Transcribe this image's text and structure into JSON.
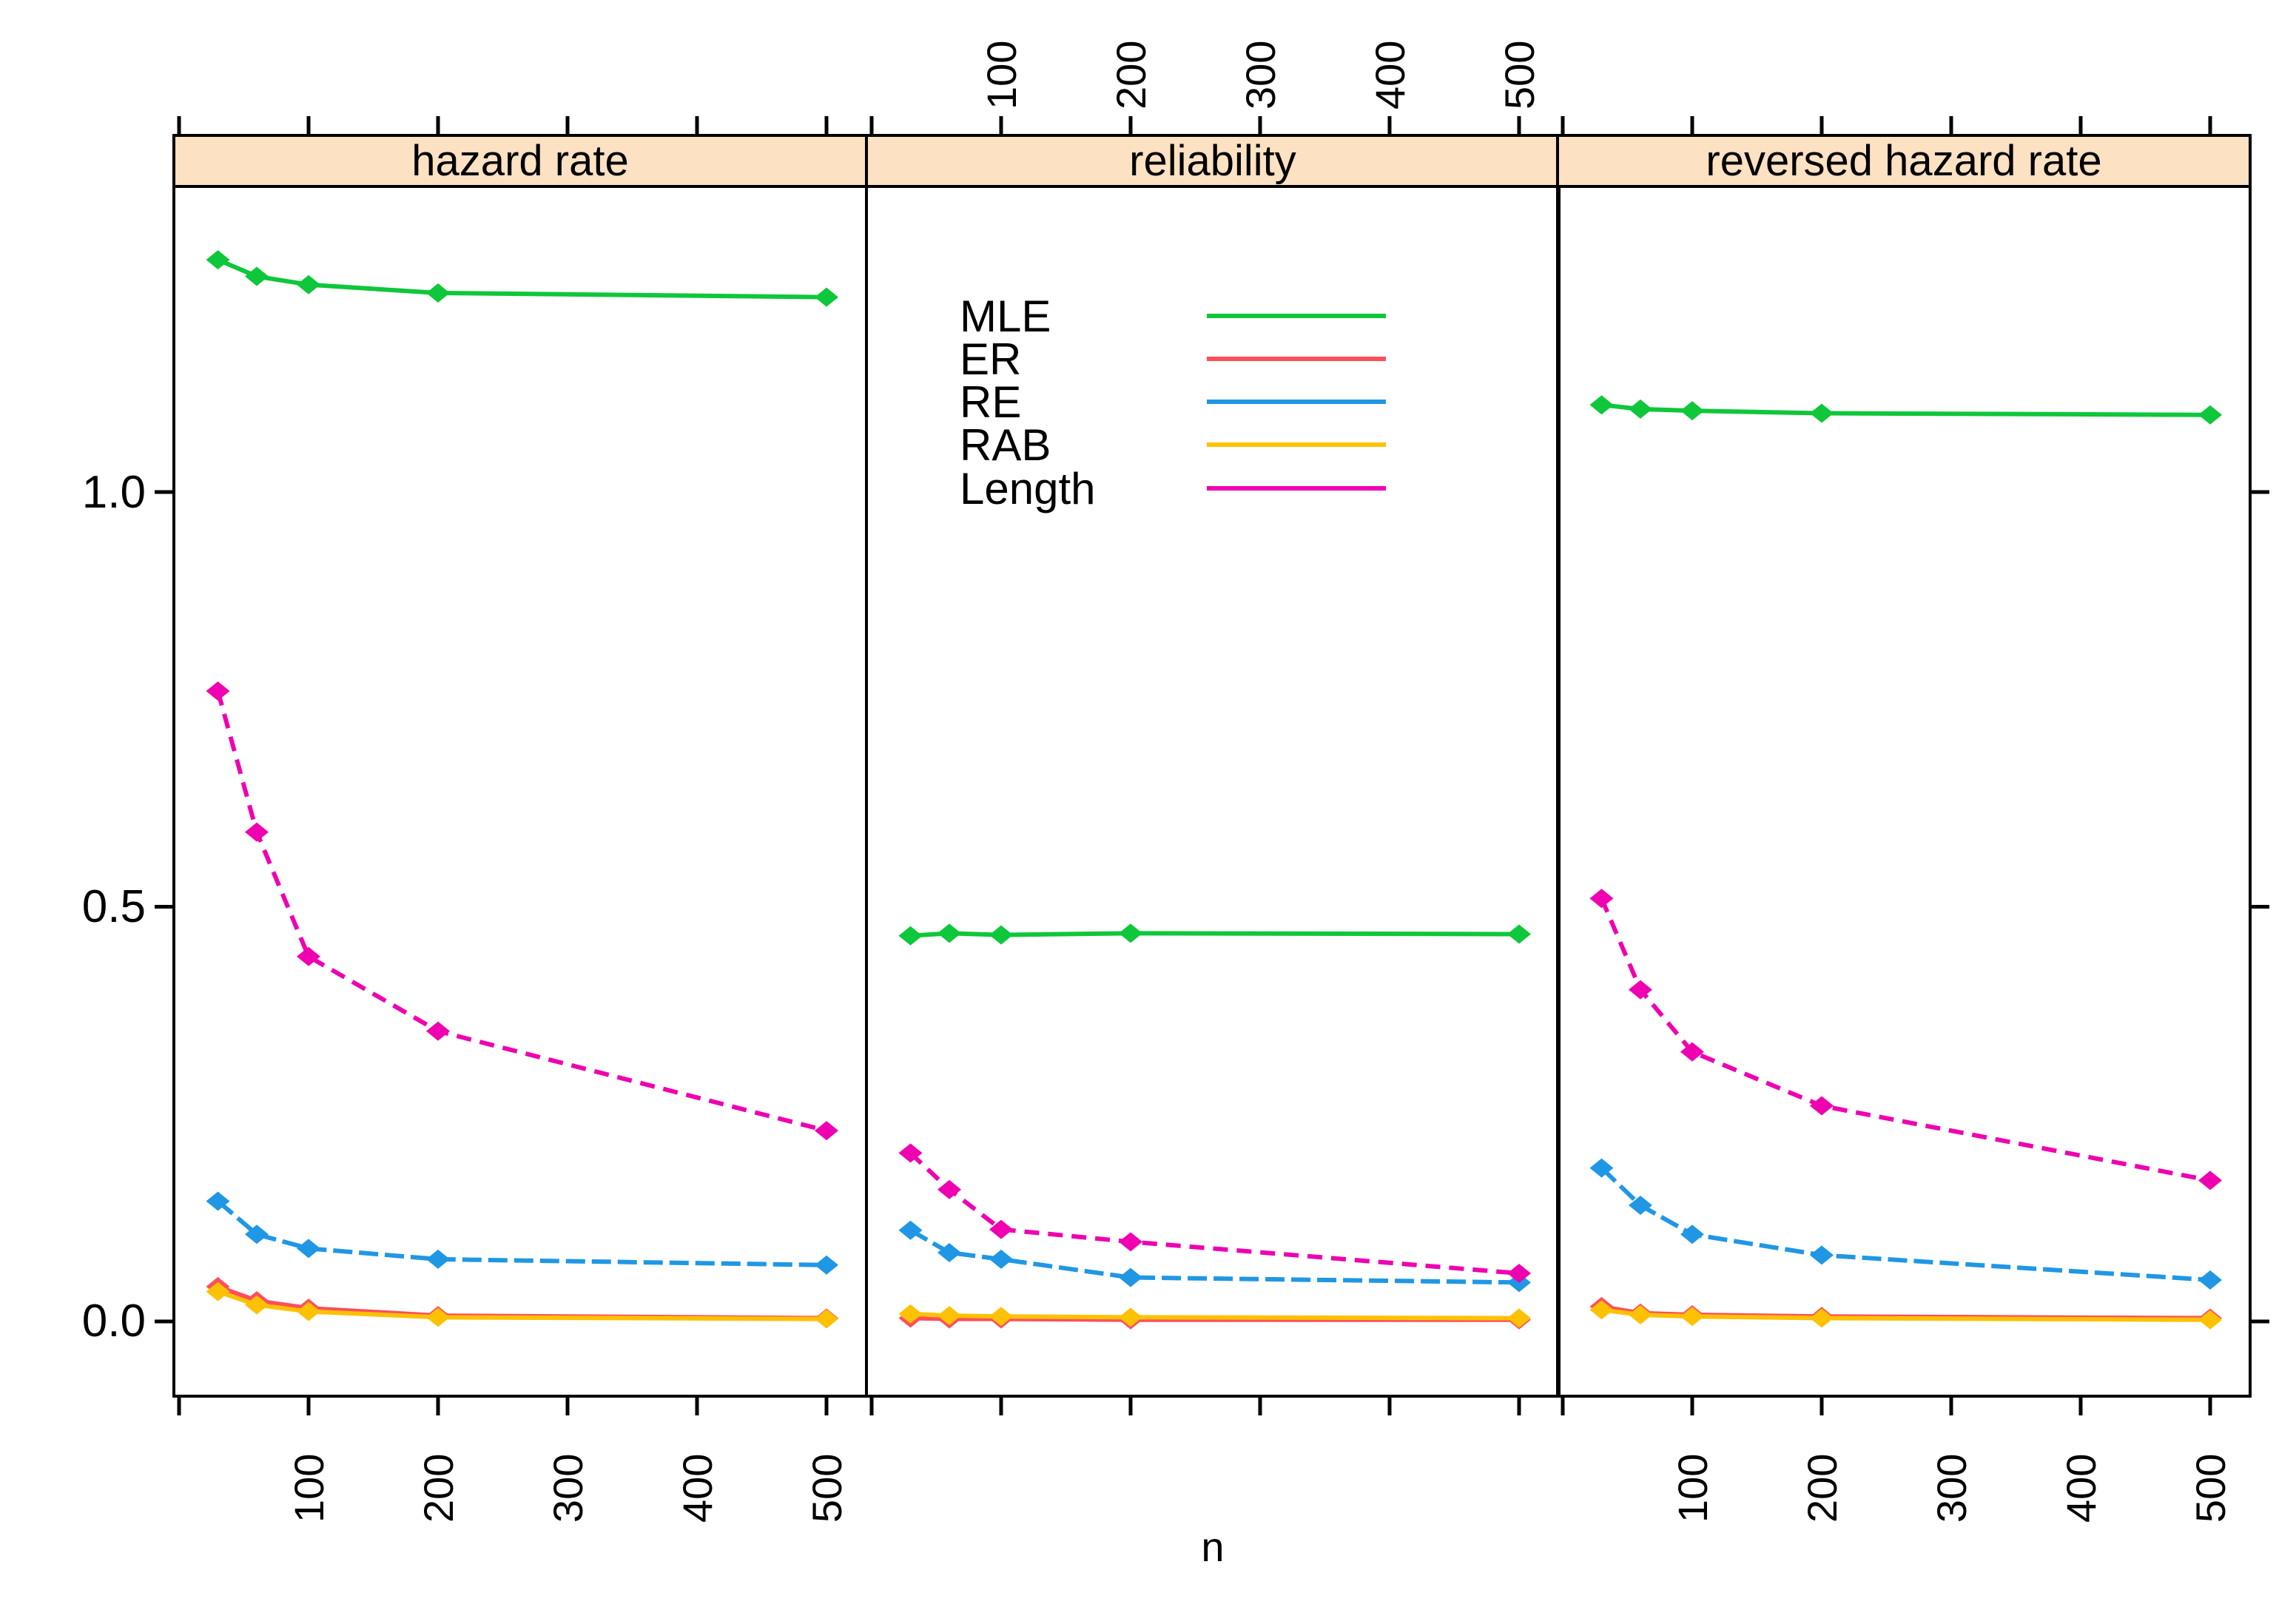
{
  "figure": {
    "background": "#ffffff",
    "border_color": "#000000",
    "strip_fill": "#fce1c2"
  },
  "chart_data": {
    "type": "line",
    "layout": "lattice-trellis-3-panels",
    "xlabel": "n",
    "x": [
      30,
      60,
      100,
      200,
      500
    ],
    "x_axis": {
      "ticks": [
        {
          "value": 0,
          "label": ""
        },
        {
          "value": 100,
          "label": "100"
        },
        {
          "value": 200,
          "label": "200"
        },
        {
          "value": 300,
          "label": "300"
        },
        {
          "value": 400,
          "label": "400"
        },
        {
          "value": 500,
          "label": "500"
        }
      ],
      "tick_label_rotation": -90,
      "label_positions": "bottom for panels 1 and 3, top for panel 2"
    },
    "y_axis": {
      "ticks": [
        0.0,
        0.5,
        1.0
      ],
      "tick_labels": [
        "0.0",
        "0.5",
        "1.0"
      ],
      "ylim": [
        -0.09,
        1.37
      ],
      "label_position": "left of panel 1, unlabeled ticks right of panel 3"
    },
    "grid": false,
    "legend": {
      "position": "inside panel 2, upper left",
      "entries": [
        {
          "label": "MLE",
          "color": "#0ec73a",
          "line_style": "solid"
        },
        {
          "label": "ER",
          "color": "#ff4e5b",
          "line_style": "solid"
        },
        {
          "label": "RE",
          "color": "#2097e4",
          "line_style": "dashed"
        },
        {
          "label": "RAB",
          "color": "#ffc103",
          "line_style": "solid"
        },
        {
          "label": "Length",
          "color": "#ef00b0",
          "line_style": "dashed"
        }
      ]
    },
    "panels": [
      {
        "title": "hazard rate",
        "series": [
          {
            "name": "MLE",
            "values": [
              1.28,
              1.26,
              1.25,
              1.24,
              1.235
            ]
          },
          {
            "name": "ER",
            "values": [
              0.042,
              0.025,
              0.016,
              0.007,
              0.004
            ]
          },
          {
            "name": "RE",
            "values": [
              0.145,
              0.105,
              0.088,
              0.075,
              0.068
            ]
          },
          {
            "name": "RAB",
            "values": [
              0.036,
              0.02,
              0.012,
              0.005,
              0.003
            ]
          },
          {
            "name": "Length",
            "values": [
              0.76,
              0.59,
              0.44,
              0.35,
              0.23
            ]
          }
        ]
      },
      {
        "title": "reliability",
        "series": [
          {
            "name": "MLE",
            "values": [
              0.465,
              0.468,
              0.466,
              0.468,
              0.467
            ]
          },
          {
            "name": "ER",
            "values": [
              0.004,
              0.003,
              0.003,
              0.002,
              0.002
            ]
          },
          {
            "name": "RE",
            "values": [
              0.11,
              0.083,
              0.075,
              0.053,
              0.047
            ]
          },
          {
            "name": "RAB",
            "values": [
              0.009,
              0.007,
              0.006,
              0.005,
              0.004
            ]
          },
          {
            "name": "Length",
            "values": [
              0.203,
              0.159,
              0.111,
              0.096,
              0.058
            ]
          }
        ]
      },
      {
        "title": "reversed hazard rate",
        "series": [
          {
            "name": "MLE",
            "values": [
              1.105,
              1.1,
              1.098,
              1.095,
              1.093
            ]
          },
          {
            "name": "ER",
            "values": [
              0.018,
              0.01,
              0.008,
              0.006,
              0.004
            ]
          },
          {
            "name": "RE",
            "values": [
              0.185,
              0.14,
              0.105,
              0.08,
              0.05
            ]
          },
          {
            "name": "RAB",
            "values": [
              0.014,
              0.008,
              0.006,
              0.004,
              0.002
            ]
          },
          {
            "name": "Length",
            "values": [
              0.51,
              0.4,
              0.325,
              0.26,
              0.17
            ]
          }
        ]
      }
    ]
  }
}
